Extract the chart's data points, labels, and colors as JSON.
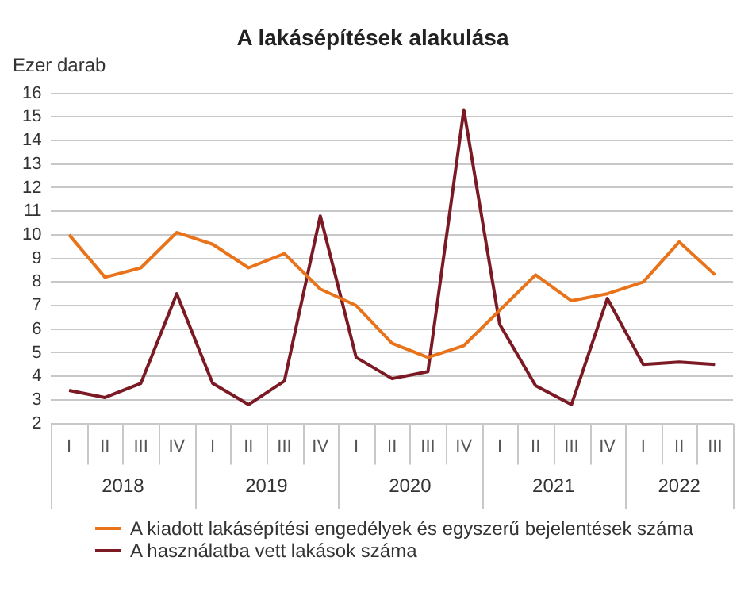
{
  "chart_data": {
    "type": "line",
    "title": "A lakásépítések alakulása",
    "ylabel": "Ezer darab",
    "categories": [
      "I",
      "II",
      "III",
      "IV",
      "I",
      "II",
      "III",
      "IV",
      "I",
      "II",
      "III",
      "IV",
      "I",
      "II",
      "III",
      "IV",
      "I",
      "II",
      "III"
    ],
    "annotations": [
      "2018",
      "2019",
      "2020",
      "2021",
      "2022"
    ],
    "series": [
      {
        "name": "A kiadott lakásépítési engedélyek és egyszerű bejelentések száma",
        "color": "#e8731a",
        "values": [
          10.0,
          8.2,
          8.6,
          10.1,
          9.6,
          8.6,
          9.2,
          7.7,
          7.0,
          5.4,
          4.8,
          5.3,
          6.8,
          8.3,
          7.2,
          7.5,
          8.0,
          9.7,
          8.3
        ]
      },
      {
        "name": "A használatba vett lakások száma",
        "color": "#7b1a24",
        "values": [
          3.4,
          3.1,
          3.7,
          7.5,
          3.7,
          2.8,
          3.8,
          10.8,
          4.8,
          3.9,
          4.2,
          15.3,
          6.2,
          3.6,
          2.8,
          7.3,
          4.5,
          4.6,
          4.5
        ]
      }
    ],
    "ylim": [
      2,
      16
    ],
    "yticks": [
      2,
      3,
      4,
      5,
      6,
      7,
      8,
      9,
      10,
      11,
      12,
      13,
      14,
      15,
      16
    ],
    "grid": "y",
    "legend": "bottom",
    "marker": "none",
    "line_style": "solid"
  }
}
